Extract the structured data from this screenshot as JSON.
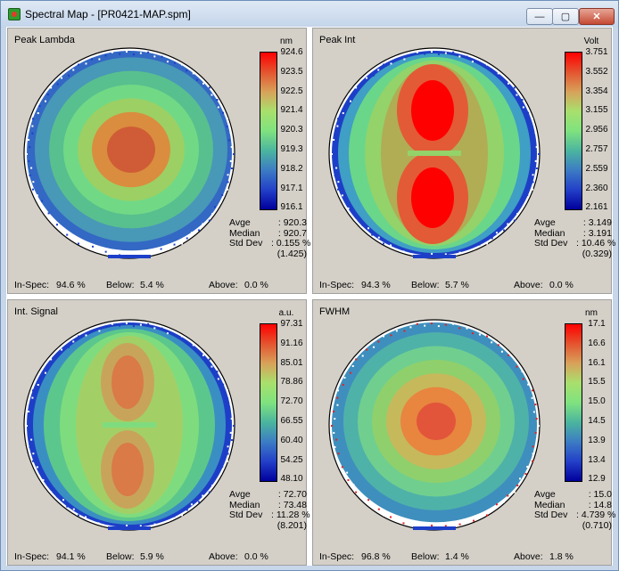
{
  "window": {
    "title": "Spectral Map - [PR0421-MAP.spm]",
    "min_label": "—",
    "max_label": "▢",
    "close_label": "✕"
  },
  "labels": {
    "avge": "Avge",
    "median": "Median",
    "std": "Std Dev",
    "inspec": "In-Spec:",
    "below": "Below:",
    "above": "Above:"
  },
  "panels": [
    {
      "title": "Peak Lambda",
      "unit": "nm",
      "ticks": [
        "924.6",
        "923.5",
        "922.5",
        "921.4",
        "920.3",
        "919.3",
        "918.2",
        "917.1",
        "916.1"
      ],
      "stats": {
        "avge": ": 920.3",
        "median": ": 920.7",
        "std": ": 0.155 %",
        "std2": "(1.425)"
      },
      "inspec": "94.6 %",
      "below": "5.4 %",
      "above": "0.0 %",
      "pattern": "ring",
      "colors": [
        "#cf5c36",
        "#da8d3e",
        "#9cd064",
        "#71d985",
        "#58c08e",
        "#4898b8",
        "#3368c4"
      ]
    },
    {
      "title": "Peak Int",
      "unit": "Volt",
      "ticks": [
        "3.751",
        "3.552",
        "3.354",
        "3.155",
        "2.956",
        "2.757",
        "2.559",
        "2.360",
        "2.161"
      ],
      "stats": {
        "avge": ": 3.149",
        "median": ": 3.191",
        "std": ": 10.46 %",
        "std2": "(0.329)"
      },
      "inspec": "94.3 %",
      "below": "5.7 %",
      "above": "0.0 %",
      "pattern": "dumbbell",
      "colors": [
        "#ff0000",
        "#e35a36",
        "#b0ad55",
        "#93d36a",
        "#6ad68a",
        "#3f9fc4",
        "#1d3fc8"
      ]
    },
    {
      "title": "Int. Signal",
      "unit": "a.u.",
      "ticks": [
        "97.31",
        "91.16",
        "85.01",
        "78.86",
        "72.70",
        "66.55",
        "60.40",
        "54.25",
        "48.10"
      ],
      "stats": {
        "avge": ": 72.70",
        "median": ": 73.48",
        "std": ": 11.28 %",
        "std2": "(8.201)"
      },
      "inspec": "94.1 %",
      "below": "5.9 %",
      "above": "0.0 %",
      "pattern": "dumbbell-soft",
      "colors": [
        "#d97a47",
        "#c8a45a",
        "#a2d067",
        "#7fdc7e",
        "#5cc78c",
        "#3a8fc2",
        "#1d3fc8"
      ]
    },
    {
      "title": "FWHM",
      "unit": "nm",
      "ticks": [
        "17.1",
        "16.6",
        "16.1",
        "15.5",
        "15.0",
        "14.5",
        "13.9",
        "13.4",
        "12.9"
      ],
      "stats": {
        "avge": ": 15.0",
        "median": ": 14.8",
        "std": ": 4.739 %",
        "std2": "(0.710)"
      },
      "inspec": "96.8 %",
      "below": "1.4 %",
      "above": "1.8 %",
      "pattern": "ring-fwhm",
      "colors": [
        "#e2553a",
        "#e8853f",
        "#c6b95c",
        "#8fd06c",
        "#70cf8f",
        "#4fb2a8",
        "#3e8fbd"
      ]
    }
  ],
  "colorbar_stops": [
    "#ff0000",
    "#e4542f",
    "#d8a25a",
    "#a8e06c",
    "#7fe27f",
    "#4bb59e",
    "#3c7cc4",
    "#2340c8",
    "#00009c"
  ]
}
